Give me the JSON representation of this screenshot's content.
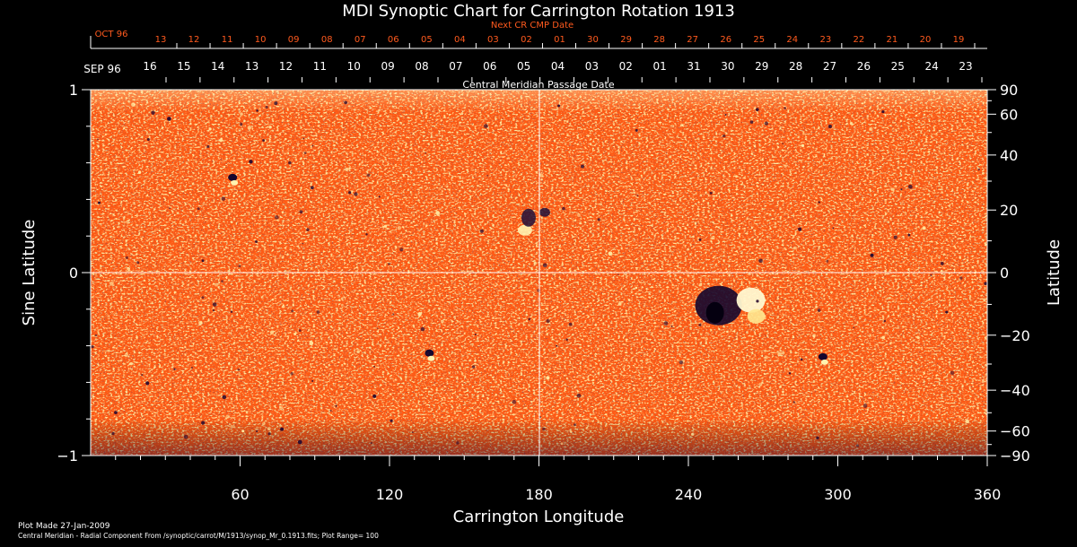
{
  "chart_data": {
    "type": "heatmap",
    "title": "MDI Synoptic Chart for Carrington Rotation 1913",
    "xlabel": "Carrington Longitude",
    "ylabel_left": "Sine Latitude",
    "ylabel_right": "Latitude",
    "xlim": [
      0,
      360
    ],
    "ylim": [
      -1,
      1
    ],
    "x_ticks": [
      "60",
      "120",
      "180",
      "240",
      "300",
      "360"
    ],
    "y_left_ticks": [
      "1",
      "0",
      "−1"
    ],
    "y_right_ticks": [
      "90",
      "60",
      "40",
      "20",
      "0",
      "−20",
      "−40",
      "−60",
      "−90"
    ],
    "top_axis_title": "Central Meridian Passage Date",
    "top_month_start": "SEP 96",
    "top_dates": [
      "16",
      "15",
      "14",
      "13",
      "12",
      "11",
      "10",
      "09",
      "08",
      "07",
      "06",
      "05",
      "04",
      "03",
      "02",
      "01",
      "31",
      "30",
      "29",
      "28",
      "27",
      "26",
      "25",
      "24",
      "23"
    ],
    "next_cr_label": "Next CR CMP Date",
    "next_cr_month": "OCT 96",
    "next_cr_dates": [
      "13",
      "12",
      "11",
      "10",
      "09",
      "08",
      "07",
      "06",
      "05",
      "04",
      "03",
      "02",
      "01",
      "30",
      "29",
      "28",
      "27",
      "26",
      "25",
      "24",
      "23",
      "22",
      "21",
      "20",
      "19"
    ],
    "plot_range": 100,
    "features": [
      {
        "type": "bipolar active region",
        "longitude": 255,
        "sin_latitude": -0.18
      },
      {
        "type": "magnetic spot",
        "longitude": 136,
        "sin_latitude": -0.44
      },
      {
        "type": "magnetic spot",
        "longitude": 294,
        "sin_latitude": -0.46
      },
      {
        "type": "bipolar region",
        "longitude": 178,
        "sin_latitude": 0.3
      },
      {
        "type": "magnetic spot",
        "longitude": 57,
        "sin_latitude": 0.52
      }
    ]
  },
  "footer": {
    "plot_made": "Plot Made 27-Jan-2009",
    "description": "Central Meridian - Radial Component From /synoptic/carrot/M/1913/synop_Mr_0.1913.fits; Plot Range=  100"
  },
  "colors": {
    "background": "#000000",
    "field_base": "#ff5a14",
    "positive": "#fff0a0",
    "negative": "#1a0a3c",
    "next_cr_text": "#ff5a1e"
  }
}
